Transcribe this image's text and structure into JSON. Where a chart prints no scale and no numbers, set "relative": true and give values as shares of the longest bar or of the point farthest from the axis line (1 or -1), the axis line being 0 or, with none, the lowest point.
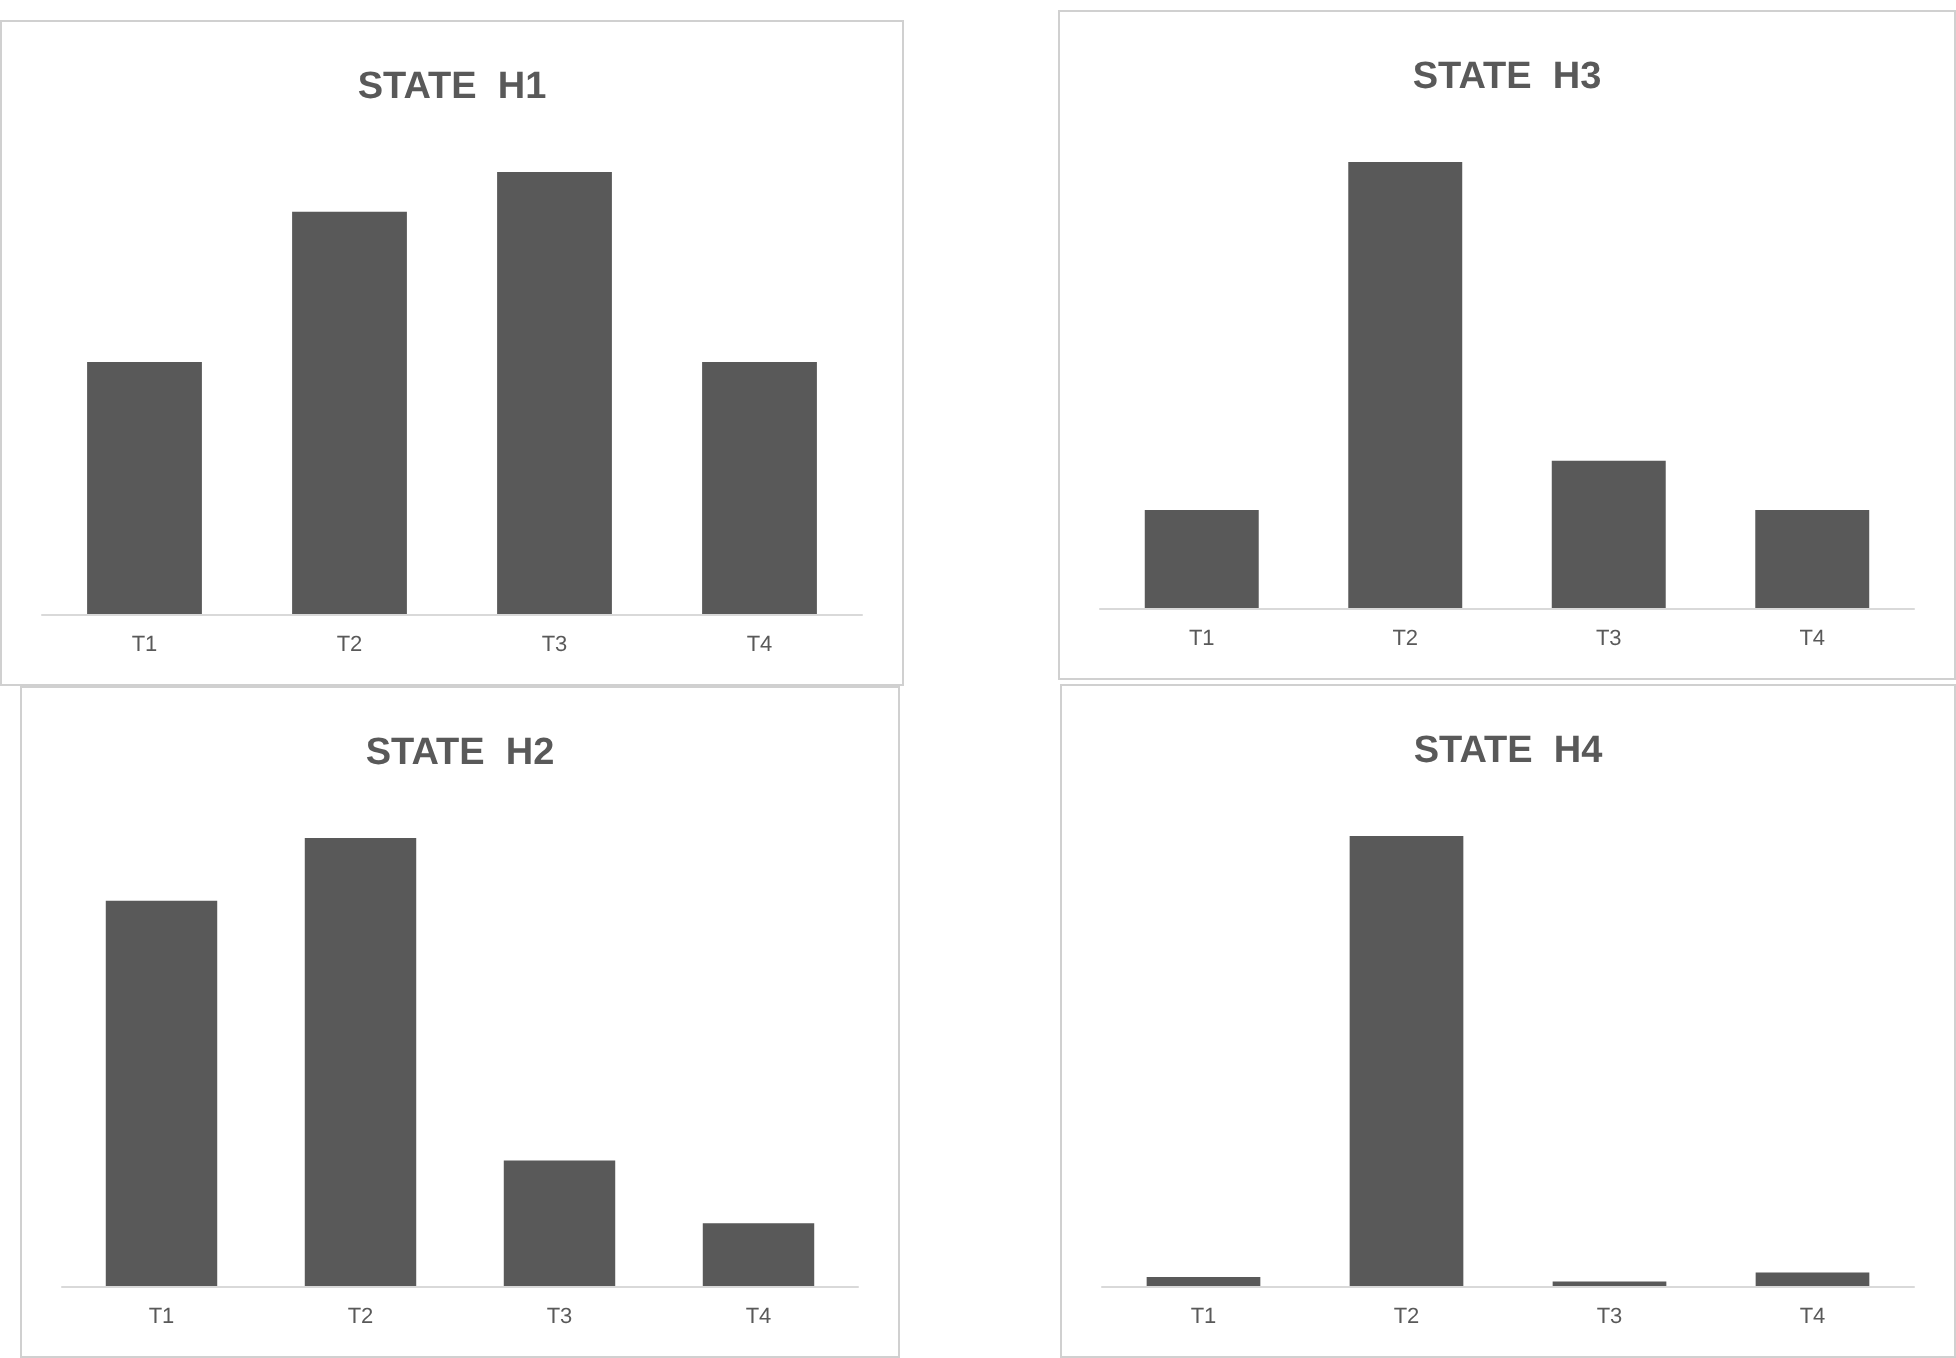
{
  "chart_data": [
    {
      "type": "bar",
      "title": "STATE  H1",
      "categories": [
        "T1",
        "T2",
        "T3",
        "T4"
      ],
      "values": [
        0.57,
        0.91,
        1,
        0.57
      ],
      "color": "#595959",
      "relative": true
    },
    {
      "type": "bar",
      "title": "STATE  H3",
      "categories": [
        "T1",
        "T2",
        "T3",
        "T4"
      ],
      "values": [
        0.22,
        1,
        0.33,
        0.22
      ],
      "color": "#595959",
      "relative": true
    },
    {
      "type": "bar",
      "title": "STATE  H2",
      "categories": [
        "T1",
        "T2",
        "T3",
        "T4"
      ],
      "values": [
        0.86,
        1,
        0.28,
        0.14
      ],
      "color": "#595959",
      "relative": true
    },
    {
      "type": "bar",
      "title": "STATE  H4",
      "categories": [
        "T1",
        "T2",
        "T3",
        "T4"
      ],
      "values": [
        0.02,
        1,
        0.01,
        0.03
      ],
      "color": "#595959",
      "relative": true
    }
  ]
}
